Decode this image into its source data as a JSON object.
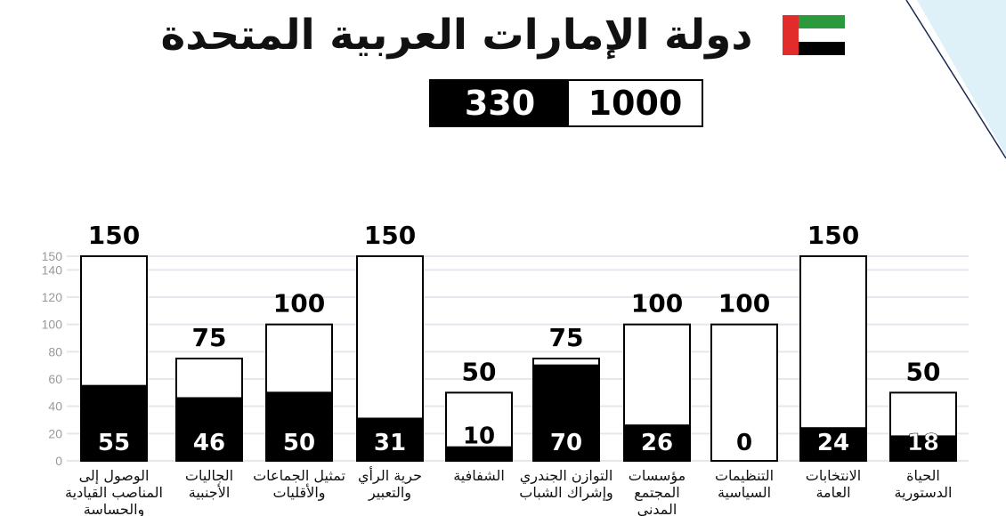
{
  "header": {
    "title": "دولة الإمارات العربية المتحدة",
    "total_score": "330",
    "total_max": "1000"
  },
  "colors": {
    "score_fill": "#000000",
    "max_fill": "#ffffff",
    "grid": "#e6e6ee",
    "flag_green": "#2a9a3c",
    "flag_red": "#e22b2b",
    "flag_black": "#000000",
    "deco_blue": "#dff1f8"
  },
  "chart_data": {
    "type": "bar",
    "ylim": [
      0,
      150
    ],
    "yticks": [
      0,
      20,
      40,
      60,
      80,
      100,
      120,
      140,
      150
    ],
    "grid": true,
    "categories": [
      [
        "الوصول إلى",
        "المناصب القيادية",
        "والحساسة"
      ],
      [
        "الجاليات",
        "الأجنبية"
      ],
      [
        "تمثيل الجماعات",
        "والأقليات"
      ],
      [
        "حرية الرأي",
        "والتعبير"
      ],
      [
        "الشفافية"
      ],
      [
        "التوازن الجندري",
        "وإشراك الشباب"
      ],
      [
        "مؤسسات",
        "المجتمع",
        "المدني"
      ],
      [
        "التنظيمات",
        "السياسية"
      ],
      [
        "الانتخابات",
        "العامة"
      ],
      [
        "الحياة",
        "الدستورية"
      ]
    ],
    "series": [
      {
        "values": [
          150,
          75,
          100,
          150,
          50,
          75,
          100,
          100,
          150,
          50
        ]
      },
      {
        "values": [
          55,
          46,
          50,
          31,
          10,
          70,
          26,
          0,
          24,
          18
        ]
      }
    ]
  }
}
